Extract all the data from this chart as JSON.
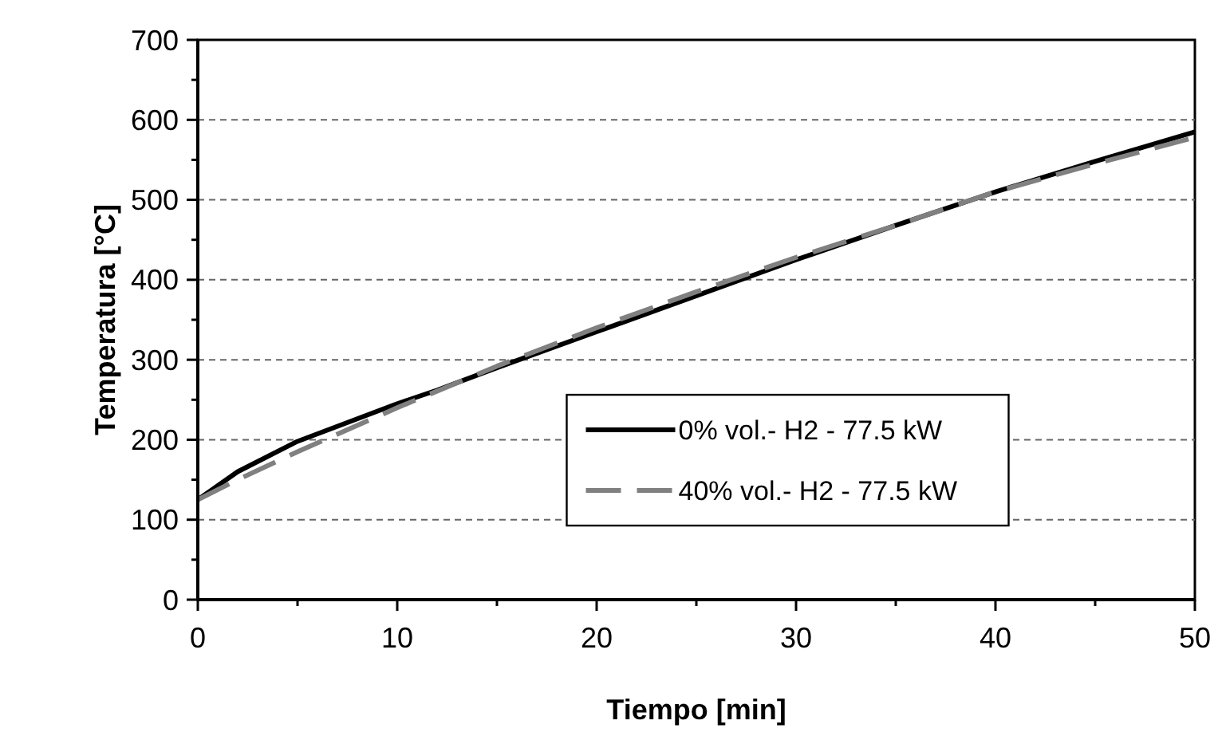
{
  "chart_data": {
    "type": "line",
    "xlabel": "Tiempo [min]",
    "ylabel": "Temperatura [°C]",
    "xlim": [
      0,
      50
    ],
    "xticks": [
      0,
      10,
      20,
      30,
      40,
      50
    ],
    "ylim": [
      0,
      700
    ],
    "yticks": [
      0,
      100,
      200,
      300,
      400,
      500,
      600,
      700
    ],
    "grid": "y",
    "legend": "right",
    "series": [
      {
        "name": "0% vol.- H2 - 77.5 kW",
        "color": "#000000",
        "line_style": "solid",
        "x": [
          0,
          2,
          5,
          10,
          12,
          15,
          20,
          25,
          30,
          35,
          40,
          45,
          50
        ],
        "values": [
          125,
          160,
          198,
          245,
          262,
          290,
          335,
          380,
          425,
          468,
          510,
          548,
          585
        ]
      },
      {
        "name": "40% vol.- H2 - 77.5 kW",
        "color": "#808080",
        "line_style": "dashed",
        "x": [
          0,
          2,
          5,
          10,
          15,
          20,
          25,
          30,
          35,
          40,
          45,
          50
        ],
        "values": [
          125,
          150,
          185,
          240,
          292,
          340,
          385,
          428,
          468,
          510,
          545,
          578
        ]
      }
    ]
  }
}
